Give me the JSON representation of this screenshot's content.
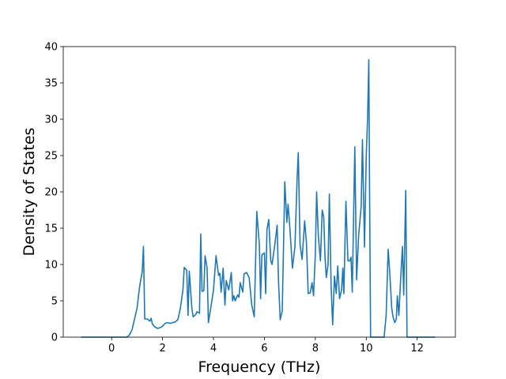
{
  "chart_data": {
    "type": "line",
    "x_label": "Frequency (THz)",
    "y_label": "Density of States",
    "x": [
      -1.2,
      0.6,
      0.7,
      0.8,
      0.9,
      1.0,
      1.1,
      1.2,
      1.25,
      1.3,
      1.4,
      1.5,
      1.55,
      1.6,
      1.7,
      1.8,
      1.9,
      2.0,
      2.1,
      2.2,
      2.3,
      2.4,
      2.5,
      2.6,
      2.7,
      2.8,
      2.85,
      2.95,
      3.0,
      3.05,
      3.15,
      3.2,
      3.3,
      3.35,
      3.45,
      3.5,
      3.55,
      3.62,
      3.67,
      3.75,
      3.8,
      3.9,
      4.0,
      4.1,
      4.2,
      4.25,
      4.3,
      4.38,
      4.45,
      4.5,
      4.6,
      4.7,
      4.75,
      4.8,
      4.85,
      4.95,
      5.0,
      5.05,
      5.15,
      5.2,
      5.3,
      5.4,
      5.5,
      5.6,
      5.65,
      5.7,
      5.8,
      5.85,
      5.9,
      6.0,
      6.05,
      6.1,
      6.17,
      6.25,
      6.3,
      6.4,
      6.5,
      6.55,
      6.62,
      6.7,
      6.8,
      6.88,
      6.93,
      7.0,
      7.1,
      7.2,
      7.28,
      7.33,
      7.4,
      7.48,
      7.58,
      7.65,
      7.72,
      7.8,
      7.87,
      7.93,
      8.0,
      8.05,
      8.12,
      8.2,
      8.27,
      8.33,
      8.38,
      8.43,
      8.5,
      8.55,
      8.62,
      8.68,
      8.75,
      8.82,
      8.88,
      8.95,
      9.03,
      9.08,
      9.12,
      9.2,
      9.28,
      9.35,
      9.4,
      9.45,
      9.55,
      9.62,
      9.7,
      9.8,
      9.85,
      9.93,
      10.0,
      10.05,
      10.1,
      10.13,
      10.17,
      10.7,
      10.78,
      10.86,
      10.92,
      11.0,
      11.05,
      11.12,
      11.18,
      11.22,
      11.28,
      11.35,
      11.42,
      11.47,
      11.55,
      11.6,
      12.7
    ],
    "series": [
      {
        "color": "#1f77b4",
        "values": [
          0,
          0,
          0.3,
          1,
          2.5,
          4,
          7,
          9,
          12.5,
          2.5,
          2.5,
          2.2,
          2.6,
          1.8,
          1.4,
          1.2,
          1.3,
          1.5,
          1.9,
          2.0,
          1.9,
          2.0,
          2.1,
          2.4,
          4,
          6.5,
          9.6,
          9.2,
          3,
          9.1,
          4,
          2.8,
          3.1,
          3.5,
          3.3,
          14.2,
          6.3,
          6.4,
          11.2,
          9.5,
          2,
          4.2,
          6.5,
          11.2,
          8.5,
          8.8,
          6.2,
          9.5,
          4.4,
          7.8,
          6.5,
          8.9,
          5,
          5.7,
          5,
          5.8,
          5.5,
          7.5,
          6.2,
          8.7,
          8.9,
          8.2,
          4.5,
          2.8,
          10,
          17.3,
          12.8,
          5.3,
          11.3,
          11.6,
          6,
          14.8,
          16.2,
          10.5,
          10,
          12.5,
          15.4,
          8,
          2.4,
          3.6,
          21.4,
          15.8,
          18.3,
          15,
          9.5,
          12.5,
          21.5,
          25.4,
          12.7,
          10.7,
          16,
          13,
          6,
          6.1,
          7.5,
          5.7,
          11.5,
          20,
          13.8,
          10.5,
          17.5,
          16.5,
          11,
          8.2,
          10,
          19.7,
          7,
          1.7,
          8.4,
          6,
          9.8,
          5.3,
          6.5,
          9.5,
          6,
          18.7,
          10.5,
          10.5,
          11,
          6.2,
          26.2,
          7.9,
          14,
          18,
          27.2,
          12.4,
          25,
          30,
          38.2,
          20,
          0,
          0,
          3,
          12.1,
          9,
          4,
          2.8,
          2,
          2.5,
          5.7,
          3,
          8,
          12.5,
          5.8,
          20.2,
          0,
          0
        ]
      }
    ],
    "xlim": [
      -1.9,
      13.5
    ],
    "ylim": [
      0,
      40
    ],
    "xticks": [
      0,
      2,
      4,
      6,
      8,
      10,
      12
    ],
    "yticks": [
      0,
      5,
      10,
      15,
      20,
      25,
      30,
      35,
      40
    ]
  }
}
